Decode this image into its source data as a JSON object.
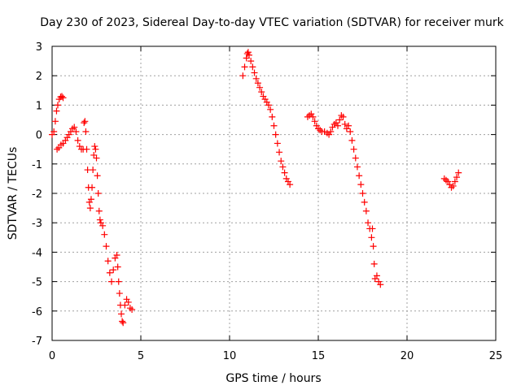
{
  "chart_data": {
    "type": "scatter",
    "title": "Day 230 of 2023, Sidereal Day-to-day VTEC variation (SDTVAR) for receiver murk",
    "xlabel": "GPS time / hours",
    "ylabel": "SDTVAR / TECUs",
    "xlim": [
      0,
      25
    ],
    "ylim": [
      -7,
      3
    ],
    "grid": true,
    "x_ticks": [
      0,
      5,
      10,
      15,
      20,
      25
    ],
    "x_tick_labels": [
      "0",
      "5",
      "10",
      "15",
      "20",
      "25"
    ],
    "y_ticks": [
      -7,
      -6,
      -5,
      -4,
      -3,
      -2,
      -1,
      0,
      1,
      2,
      3
    ],
    "y_tick_labels": [
      "-7",
      "-6",
      "-5",
      "-4",
      "-3",
      "-2",
      "-1",
      "0",
      "1",
      "2",
      "3"
    ],
    "marker": "+",
    "series": [
      {
        "name": "segment-1",
        "color": "#ff0000",
        "points": [
          [
            0.0,
            0.0
          ],
          [
            0.1,
            0.1
          ],
          [
            0.18,
            0.45
          ],
          [
            0.25,
            0.8
          ],
          [
            0.32,
            1.0
          ],
          [
            0.4,
            1.2
          ],
          [
            0.48,
            1.28
          ],
          [
            0.55,
            1.3
          ],
          [
            0.62,
            1.25
          ],
          [
            0.28,
            -0.5
          ],
          [
            0.38,
            -0.45
          ],
          [
            0.5,
            -0.35
          ],
          [
            0.62,
            -0.3
          ],
          [
            0.75,
            -0.2
          ],
          [
            0.85,
            -0.1
          ],
          [
            0.95,
            0.0
          ],
          [
            1.05,
            0.1
          ],
          [
            1.15,
            0.2
          ],
          [
            1.25,
            0.25
          ],
          [
            1.35,
            0.1
          ],
          [
            1.45,
            -0.2
          ],
          [
            1.55,
            -0.4
          ],
          [
            1.65,
            -0.5
          ],
          [
            1.75,
            -0.5
          ],
          [
            1.8,
            0.4
          ],
          [
            1.85,
            0.45
          ],
          [
            1.9,
            0.1
          ],
          [
            1.95,
            -0.5
          ],
          [
            2.0,
            -1.2
          ],
          [
            2.05,
            -1.8
          ],
          [
            2.1,
            -2.3
          ],
          [
            2.15,
            -2.5
          ],
          [
            2.2,
            -2.2
          ],
          [
            2.25,
            -1.8
          ],
          [
            2.3,
            -1.2
          ],
          [
            2.35,
            -0.7
          ],
          [
            2.4,
            -0.4
          ],
          [
            2.45,
            -0.5
          ],
          [
            2.5,
            -0.8
          ],
          [
            2.55,
            -1.4
          ],
          [
            2.6,
            -2.0
          ],
          [
            2.65,
            -2.6
          ],
          [
            2.7,
            -2.9
          ],
          [
            2.75,
            -3.0
          ],
          [
            2.85,
            -3.1
          ],
          [
            2.95,
            -3.4
          ],
          [
            3.05,
            -3.8
          ],
          [
            3.15,
            -4.3
          ],
          [
            3.25,
            -4.7
          ],
          [
            3.35,
            -5.0
          ],
          [
            3.45,
            -4.6
          ],
          [
            3.55,
            -4.2
          ],
          [
            3.65,
            -4.1
          ],
          [
            3.7,
            -4.5
          ],
          [
            3.75,
            -5.0
          ],
          [
            3.8,
            -5.4
          ],
          [
            3.85,
            -5.8
          ],
          [
            3.9,
            -6.1
          ],
          [
            3.95,
            -6.35
          ],
          [
            4.0,
            -6.4
          ],
          [
            4.1,
            -5.8
          ],
          [
            4.2,
            -5.6
          ],
          [
            4.3,
            -5.7
          ],
          [
            4.4,
            -5.9
          ],
          [
            4.5,
            -5.95
          ]
        ]
      },
      {
        "name": "segment-2",
        "color": "#ff0000",
        "points": [
          [
            10.75,
            2.0
          ],
          [
            10.85,
            2.3
          ],
          [
            10.95,
            2.6
          ],
          [
            11.0,
            2.75
          ],
          [
            11.05,
            2.8
          ],
          [
            11.1,
            2.7
          ],
          [
            11.2,
            2.5
          ],
          [
            11.3,
            2.3
          ],
          [
            11.4,
            2.1
          ],
          [
            11.5,
            1.9
          ],
          [
            11.6,
            1.75
          ],
          [
            11.7,
            1.6
          ],
          [
            11.8,
            1.45
          ],
          [
            11.9,
            1.3
          ],
          [
            12.0,
            1.2
          ],
          [
            12.1,
            1.1
          ],
          [
            12.2,
            1.0
          ],
          [
            12.3,
            0.85
          ],
          [
            12.4,
            0.6
          ],
          [
            12.5,
            0.3
          ],
          [
            12.6,
            0.0
          ],
          [
            12.7,
            -0.3
          ],
          [
            12.8,
            -0.6
          ],
          [
            12.9,
            -0.9
          ],
          [
            13.0,
            -1.1
          ],
          [
            13.1,
            -1.3
          ],
          [
            13.2,
            -1.5
          ],
          [
            13.3,
            -1.6
          ],
          [
            13.4,
            -1.7
          ]
        ]
      },
      {
        "name": "segment-3",
        "color": "#ff0000",
        "points": [
          [
            14.4,
            0.6
          ],
          [
            14.5,
            0.65
          ],
          [
            14.6,
            0.7
          ],
          [
            14.7,
            0.6
          ],
          [
            14.8,
            0.45
          ],
          [
            14.9,
            0.3
          ],
          [
            15.0,
            0.2
          ],
          [
            15.1,
            0.15
          ],
          [
            15.2,
            0.1
          ],
          [
            15.35,
            0.1
          ],
          [
            15.5,
            0.05
          ],
          [
            15.6,
            0.0
          ],
          [
            15.7,
            0.1
          ],
          [
            15.8,
            0.25
          ],
          [
            15.9,
            0.35
          ],
          [
            16.0,
            0.4
          ],
          [
            16.1,
            0.3
          ],
          [
            16.2,
            0.5
          ],
          [
            16.3,
            0.65
          ],
          [
            16.4,
            0.6
          ],
          [
            16.5,
            0.35
          ],
          [
            16.6,
            0.2
          ],
          [
            16.7,
            0.3
          ],
          [
            16.8,
            0.1
          ],
          [
            16.9,
            -0.2
          ],
          [
            17.0,
            -0.5
          ],
          [
            17.1,
            -0.8
          ],
          [
            17.2,
            -1.1
          ],
          [
            17.3,
            -1.4
          ],
          [
            17.4,
            -1.7
          ],
          [
            17.5,
            -2.0
          ],
          [
            17.6,
            -2.3
          ],
          [
            17.7,
            -2.6
          ],
          [
            17.8,
            -3.0
          ],
          [
            17.9,
            -3.2
          ],
          [
            18.0,
            -3.5
          ],
          [
            18.05,
            -3.2
          ],
          [
            18.1,
            -3.8
          ],
          [
            18.15,
            -4.4
          ],
          [
            18.2,
            -4.9
          ],
          [
            18.3,
            -4.8
          ],
          [
            18.4,
            -5.0
          ],
          [
            18.5,
            -5.1
          ]
        ]
      },
      {
        "name": "segment-4",
        "color": "#ff0000",
        "points": [
          [
            22.1,
            -1.5
          ],
          [
            22.2,
            -1.55
          ],
          [
            22.3,
            -1.6
          ],
          [
            22.4,
            -1.7
          ],
          [
            22.5,
            -1.8
          ],
          [
            22.6,
            -1.75
          ],
          [
            22.7,
            -1.6
          ],
          [
            22.8,
            -1.45
          ],
          [
            22.9,
            -1.3
          ]
        ]
      }
    ]
  }
}
